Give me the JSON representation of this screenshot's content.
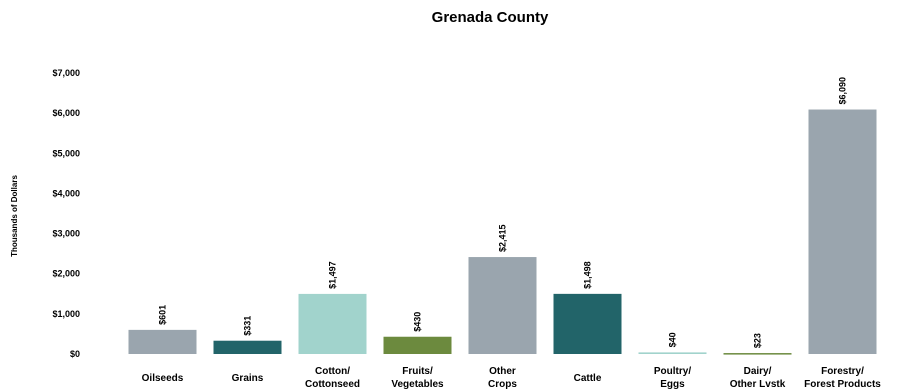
{
  "chart_data": {
    "type": "bar",
    "title": "Grenada County",
    "ylabel": "Thousands of Dollars",
    "xlabel": "",
    "ylim": [
      0,
      7000
    ],
    "yticks": [
      "$0",
      "$1,000",
      "$2,000",
      "$3,000",
      "$4,000",
      "$5,000",
      "$6,000",
      "$7,000"
    ],
    "grid": false,
    "categories": [
      [
        "Oilseeds"
      ],
      [
        "Grains"
      ],
      [
        "Cotton/",
        "Cottonseed"
      ],
      [
        "Fruits/",
        "Vegetables"
      ],
      [
        "Other",
        "Crops"
      ],
      [
        "Cattle"
      ],
      [
        "Poultry/",
        "Eggs"
      ],
      [
        "Dairy/",
        "Other Lvstk"
      ],
      [
        "Forestry/",
        "Forest Products"
      ]
    ],
    "values": [
      601,
      331,
      1497,
      430,
      2415,
      1498,
      40,
      23,
      6090
    ],
    "data_labels": [
      "$601",
      "$331",
      "$1,497",
      "$430",
      "$2,415",
      "$1,498",
      "$40",
      "$23",
      "$6,090"
    ],
    "colors": [
      "#9aa5ae",
      "#226469",
      "#a1d3cc",
      "#6c8a3e",
      "#9aa5ae",
      "#226469",
      "#a1d3cc",
      "#6c8a3e",
      "#9aa5ae"
    ]
  }
}
